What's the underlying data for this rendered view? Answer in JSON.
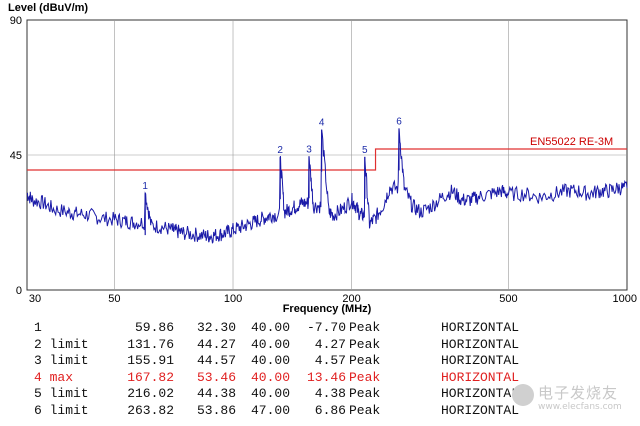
{
  "chart_data": {
    "type": "line",
    "title": "",
    "xlabel": "Frequency (MHz)",
    "ylabel": "Level (dBuV/m)",
    "x_scale": "log",
    "xlim": [
      30,
      1000
    ],
    "ylim": [
      0,
      90
    ],
    "x_ticks": [
      30,
      50,
      100,
      200,
      500,
      1000
    ],
    "y_ticks": [
      0,
      45,
      90
    ],
    "limit_line": {
      "name": "EN55022 RE-3M",
      "segments": [
        {
          "x": [
            30,
            230
          ],
          "y": 40
        },
        {
          "x": [
            230,
            1000
          ],
          "y": 47
        }
      ],
      "color": "#e03030"
    },
    "series": [
      {
        "color": "#1a1aa8",
        "x": [
          30,
          31,
          33,
          35,
          38,
          40,
          43,
          46,
          50,
          53,
          56,
          59.86,
          62,
          66,
          70,
          72,
          75,
          80,
          85,
          88,
          92,
          96,
          100,
          105,
          110,
          115,
          120,
          125,
          131.76,
          135,
          140,
          145,
          150,
          155.91,
          160,
          167.82,
          175,
          180,
          190,
          200,
          205,
          210,
          216.02,
          222,
          230,
          240,
          250,
          263.82,
          272,
          285,
          300,
          320,
          340,
          360,
          380,
          400,
          420,
          450,
          480,
          500,
          550,
          600,
          650,
          700,
          750,
          800,
          850,
          900,
          950,
          1000
        ],
        "y": [
          32,
          30,
          29,
          27,
          26,
          25.5,
          25,
          24,
          23.5,
          23,
          22.5,
          32.3,
          21.5,
          21,
          20,
          19.5,
          19,
          18.5,
          18,
          18,
          18.5,
          19,
          20,
          21,
          22,
          23,
          24,
          25,
          44.27,
          26,
          27,
          28,
          29,
          44.57,
          28,
          53.46,
          26,
          25,
          27,
          30,
          28,
          25,
          44.38,
          22,
          24,
          28,
          34,
          53.86,
          34,
          28,
          26,
          28,
          31,
          33,
          30,
          30,
          31,
          32,
          33,
          32,
          32,
          31,
          32,
          33,
          33,
          32,
          33,
          33,
          34,
          34
        ]
      }
    ],
    "markers_on_plot": [
      {
        "label": "1",
        "x": 59.86,
        "y": 32.3
      },
      {
        "label": "2",
        "x": 131.76,
        "y": 44.27
      },
      {
        "label": "3",
        "x": 155.91,
        "y": 44.57
      },
      {
        "label": "4",
        "x": 167.82,
        "y": 53.46
      },
      {
        "label": "5",
        "x": 216.02,
        "y": 44.38
      },
      {
        "label": "6",
        "x": 263.82,
        "y": 53.86
      }
    ]
  },
  "marker_table": {
    "rows": [
      {
        "idx": "1",
        "freq": "59.86",
        "level": "32.30",
        "limit": "40.00",
        "margin": "-7.70",
        "detector": "Peak",
        "polarization": "HORIZONTAL",
        "highlight": false
      },
      {
        "idx": "2 limit",
        "freq": "131.76",
        "level": "44.27",
        "limit": "40.00",
        "margin": "4.27",
        "detector": "Peak",
        "polarization": "HORIZONTAL",
        "highlight": false
      },
      {
        "idx": "3 limit",
        "freq": "155.91",
        "level": "44.57",
        "limit": "40.00",
        "margin": "4.57",
        "detector": "Peak",
        "polarization": "HORIZONTAL",
        "highlight": false
      },
      {
        "idx": "4 max",
        "freq": "167.82",
        "level": "53.46",
        "limit": "40.00",
        "margin": "13.46",
        "detector": "Peak",
        "polarization": "HORIZONTAL",
        "highlight": true
      },
      {
        "idx": "5 limit",
        "freq": "216.02",
        "level": "44.38",
        "limit": "40.00",
        "margin": "4.38",
        "detector": "Peak",
        "polarization": "HORIZONTAL",
        "highlight": false
      },
      {
        "idx": "6 limit",
        "freq": "263.82",
        "level": "53.86",
        "limit": "47.00",
        "margin": "6.86",
        "detector": "Peak",
        "polarization": "HORIZONTAL",
        "highlight": false
      }
    ]
  },
  "watermark": {
    "text": "电子发烧友",
    "sub": "www.elecfans.com"
  }
}
